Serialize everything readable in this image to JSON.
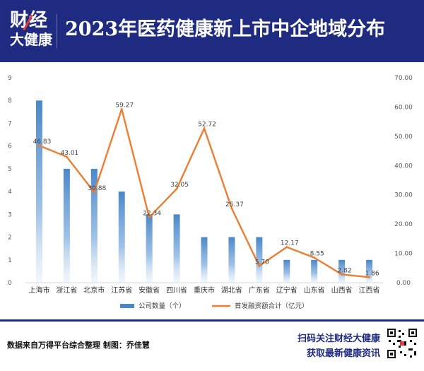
{
  "header": {
    "logo_line1": "财经",
    "logo_line2": "大健康",
    "title": "2023年医药健康新上市中企地域分布"
  },
  "chart_data": {
    "type": "bar+line",
    "categories": [
      "上海市",
      "浙江省",
      "北京市",
      "江苏省",
      "安徽省",
      "四川省",
      "重庆市",
      "湖北省",
      "广东省",
      "辽宁省",
      "山东省",
      "山西省",
      "江西省"
    ],
    "series": [
      {
        "name": "公司数量（个）",
        "type": "bar",
        "axis": "left",
        "values": [
          8,
          5,
          5,
          4,
          3,
          3,
          2,
          2,
          2,
          1,
          1,
          1,
          1
        ]
      },
      {
        "name": "首发融资额合计（亿元）",
        "type": "line",
        "axis": "right",
        "values": [
          46.83,
          43.01,
          30.88,
          59.27,
          22.34,
          32.05,
          52.72,
          25.37,
          5.7,
          12.17,
          8.55,
          2.82,
          1.86
        ]
      }
    ],
    "line_labels": [
      "46.83",
      "43.01",
      "30.88",
      "59.27",
      "22.34",
      "32.05",
      "52.72",
      "25.37",
      "5.70",
      "12.17",
      "8.55",
      "2.82",
      "1.86"
    ],
    "y_left_ticks": [
      "0",
      "1",
      "2",
      "3",
      "4",
      "5",
      "6",
      "7",
      "8",
      "9"
    ],
    "y_right_ticks": [
      "0.00",
      "10.00",
      "20.00",
      "30.00",
      "40.00",
      "50.00",
      "60.00",
      "70.00"
    ],
    "ylim_left": [
      0,
      9
    ],
    "ylim_right": [
      0,
      70
    ],
    "grid": false,
    "legend_position": "bottom",
    "colors": {
      "bar": "#4a87c8",
      "line": "#ed7d31",
      "label": "#404040"
    }
  },
  "footer": {
    "source": "数据来自万得平台综合整理  制图：乔佳慧",
    "promo_line1": "扫码关注财经大健康",
    "promo_line2": "获取最新健康资讯"
  }
}
